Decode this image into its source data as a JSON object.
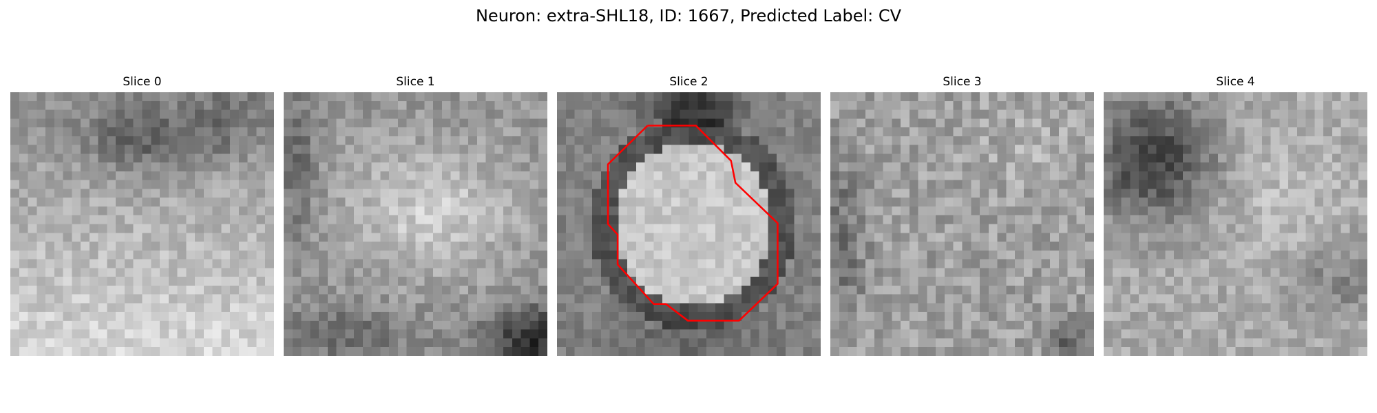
{
  "figure": {
    "title": "Neuron: extra-SHL18, ID: 1667, Predicted Label: CV",
    "outline_color": "#ff0000"
  },
  "panels": [
    {
      "title": "Slice 0",
      "tone": "upper-dark-lower-light"
    },
    {
      "title": "Slice 1",
      "tone": "bright-center-dark-lower-right"
    },
    {
      "title": "Slice 2",
      "tone": "bright-cell-body-with-outline",
      "has_outline": true
    },
    {
      "title": "Slice 3",
      "tone": "mid-gray-noise"
    },
    {
      "title": "Slice 4",
      "tone": "dark-upper-left"
    }
  ]
}
